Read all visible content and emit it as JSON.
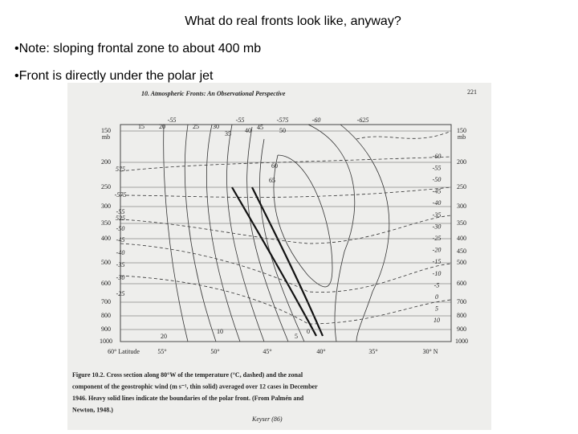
{
  "slide": {
    "title": "What do real fronts look like, anyway?",
    "bullets": [
      "•Note: sloping frontal zone to about 400 mb",
      "•Front is directly under the polar jet"
    ]
  },
  "figure": {
    "header": "10. Atmospheric Fronts: An Observational Perspective",
    "page_number": "221",
    "pressure_left": [
      "150",
      "mb",
      "200",
      "250",
      "300",
      "350",
      "400",
      "500",
      "600",
      "700",
      "800",
      "900",
      "1000"
    ],
    "pressure_right": [
      "150",
      "mb",
      "200",
      "250",
      "300",
      "350",
      "400",
      "450",
      "500",
      "600",
      "700",
      "800",
      "900",
      "1000"
    ],
    "latitudes": [
      "60° Latitude",
      "55°",
      "50°",
      "45°",
      "40°",
      "35°",
      "30° N"
    ],
    "temp_right": [
      "-60",
      "-55",
      "-50",
      "-45",
      "-40",
      "-35",
      "-30",
      "-25",
      "-20",
      "-15",
      "-10",
      "-5",
      "0",
      "5",
      "10"
    ],
    "temp_left": [
      "575",
      "-575",
      "-55",
      "525",
      "-50",
      "-45",
      "-40",
      "-35",
      "-30",
      "-25"
    ],
    "temp_top": [
      "-55",
      "-55",
      "-575",
      "-60",
      "-625"
    ],
    "wind_labels": [
      "15",
      "20",
      "25",
      "30",
      "35",
      "40",
      "45",
      "50",
      "60",
      "65",
      "10",
      "5",
      "0",
      "20"
    ],
    "caption": [
      "Figure 10.2.  Cross section along 80°W of the temperature (°C, dashed) and the zonal",
      "component of the geostrophic wind (m s⁻¹, thin solid) averaged over 12 cases in December",
      "1946.  Heavy solid lines indicate the boundaries of the polar front.  (From Palmén and",
      "Newton, 1948.)"
    ],
    "annotation": "Keyser (86)"
  }
}
